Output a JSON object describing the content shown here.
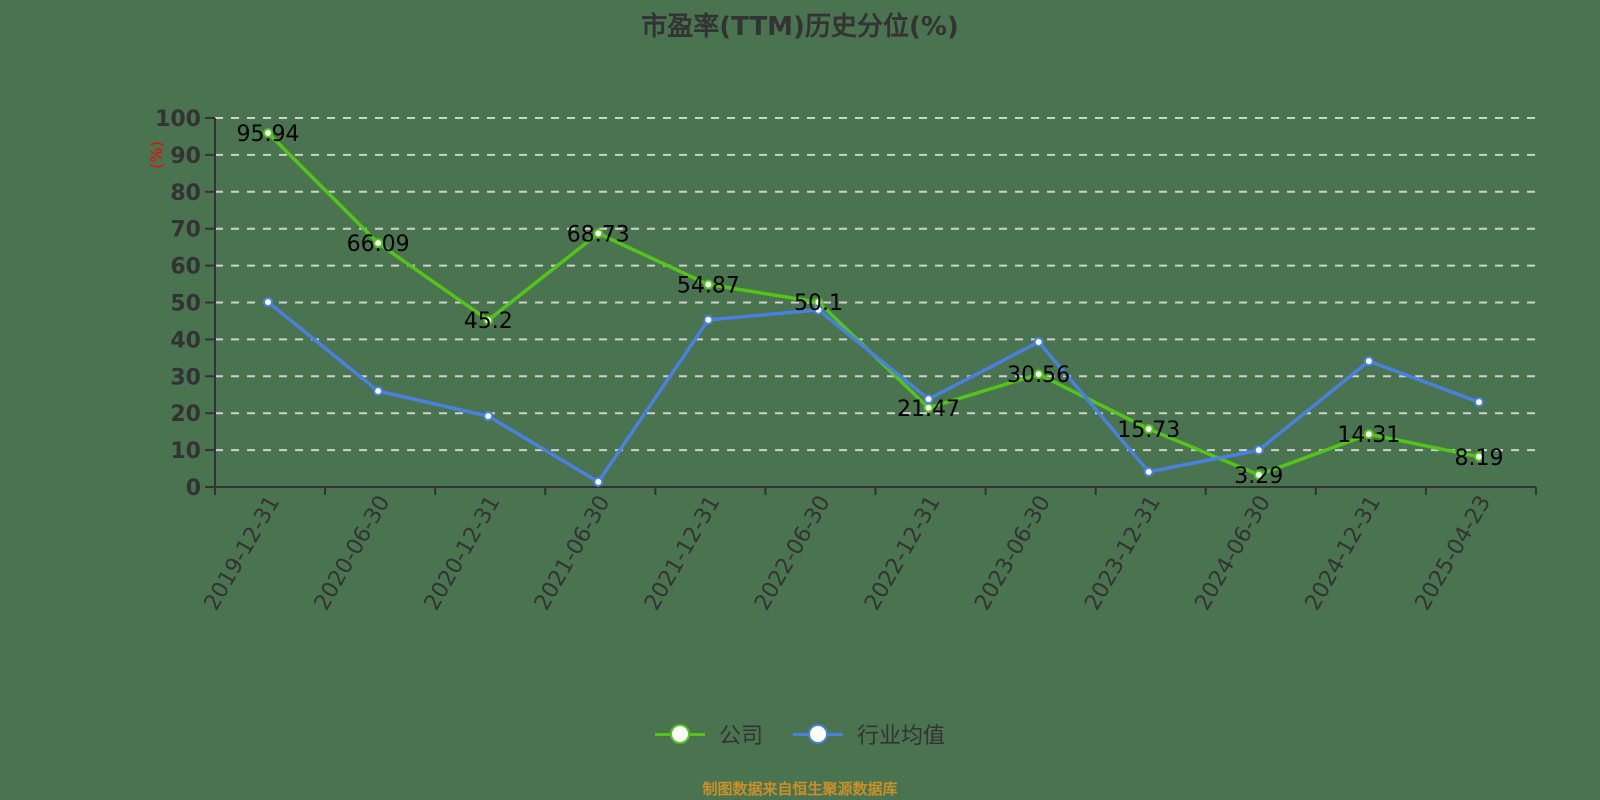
{
  "title": "市盈率(TTM)历史分位(%)",
  "source_note": "制图数据来自恒生聚源数据库",
  "legend": [
    {
      "label": "公司",
      "color": "#52c41a"
    },
    {
      "label": "行业均值",
      "color": "#4a80e0"
    }
  ],
  "chart_data": {
    "type": "line",
    "title": "市盈率(TTM)历史分位(%)",
    "xlabel": "",
    "ylabel": "(%)",
    "ylim": [
      0,
      100
    ],
    "yticks": [
      0,
      10,
      20,
      30,
      40,
      50,
      60,
      70,
      80,
      90,
      100
    ],
    "grid": true,
    "legend_position": "bottom",
    "categories": [
      "2019-12-31",
      "2020-06-30",
      "2020-12-31",
      "2021-06-30",
      "2021-12-31",
      "2022-06-30",
      "2022-12-31",
      "2023-06-30",
      "2023-12-31",
      "2024-06-30",
      "2024-12-31",
      "2025-04-23"
    ],
    "series": [
      {
        "name": "公司",
        "color": "#52c41a",
        "show_labels": true,
        "values": [
          95.94,
          66.09,
          45.2,
          68.73,
          54.87,
          50.1,
          21.47,
          30.56,
          15.73,
          3.29,
          14.31,
          8.19
        ]
      },
      {
        "name": "行业均值",
        "color": "#4a80e0",
        "show_labels": false,
        "values": [
          50.1,
          26.0,
          19.2,
          1.4,
          45.3,
          48.0,
          23.8,
          39.3,
          4.1,
          10.0,
          34.1,
          23.0
        ]
      }
    ]
  }
}
